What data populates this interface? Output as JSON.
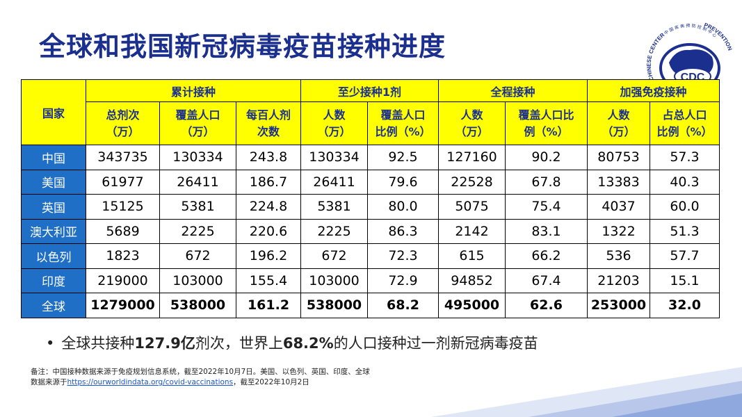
{
  "title": "全球和我国新冠病毒疫苗接种进度",
  "logo": {
    "abbrev": "CDC",
    "ring_left": "CHINESE CENTER",
    "ring_right": "PREVENTION",
    "ring_top": "中 国 疾 病 预 防 控 制 中 心"
  },
  "table": {
    "country_header": "国家",
    "groups": [
      "累计接种",
      "至少接种1剂",
      "全程接种",
      "加强免疫接种"
    ],
    "subheaders": [
      [
        "总剂次",
        "（万）"
      ],
      [
        "覆盖人口",
        "（万）"
      ],
      [
        "每百人剂",
        "次数"
      ],
      [
        "人数",
        "（万）"
      ],
      [
        "覆盖人口",
        "比例（%）"
      ],
      [
        "人数",
        "（万）"
      ],
      [
        "覆盖人口比",
        "例（%）"
      ],
      [
        "人数",
        "（万）"
      ],
      [
        "占总人口",
        "比例（%）"
      ]
    ],
    "rows": [
      {
        "country": "中国",
        "values": [
          "343735",
          "130334",
          "243.8",
          "130334",
          "92.5",
          "127160",
          "90.2",
          "80753",
          "57.3"
        ]
      },
      {
        "country": "美国",
        "values": [
          "61977",
          "26411",
          "186.7",
          "26411",
          "79.6",
          "22528",
          "67.8",
          "13383",
          "40.3"
        ]
      },
      {
        "country": "英国",
        "values": [
          "15125",
          "5381",
          "224.8",
          "5381",
          "80.0",
          "5075",
          "75.4",
          "4037",
          "60.0"
        ]
      },
      {
        "country": "澳大利亚",
        "values": [
          "5689",
          "2225",
          "220.6",
          "2225",
          "86.3",
          "2142",
          "83.1",
          "1322",
          "51.3"
        ]
      },
      {
        "country": "以色列",
        "values": [
          "1823",
          "672",
          "196.2",
          "672",
          "72.3",
          "615",
          "66.2",
          "536",
          "57.7"
        ]
      },
      {
        "country": "印度",
        "values": [
          "219000",
          "103000",
          "155.4",
          "103000",
          "72.9",
          "94852",
          "67.4",
          "21203",
          "15.1"
        ]
      },
      {
        "country": "全球",
        "values": [
          "1279000",
          "538000",
          "161.2",
          "538000",
          "68.2",
          "495000",
          "62.6",
          "253000",
          "32.0"
        ],
        "bold": true
      }
    ]
  },
  "bullet": {
    "dot": "•",
    "part1": "全球共接种",
    "bold1": "127.9亿",
    "part2": "剂次，世界上",
    "bold2": "68.2%",
    "part3": "的人口接种过一剂新冠病毒疫苗"
  },
  "note": {
    "line1": "备注：中国接种数据来源于免疫规划信息系统，截至2022年10月7日。美国、以色列、英国、印度、全球",
    "line2_prefix": "数据来源于",
    "link": "https://ourworldindata.org/covid-vaccinations",
    "line2_suffix": "，截至2022年10月2日"
  },
  "colors": {
    "title": "#1b2f8f",
    "header_bg": "#ffff00",
    "country_bg": "#1f6fc6",
    "deco_blue": "#6f8fd4"
  }
}
